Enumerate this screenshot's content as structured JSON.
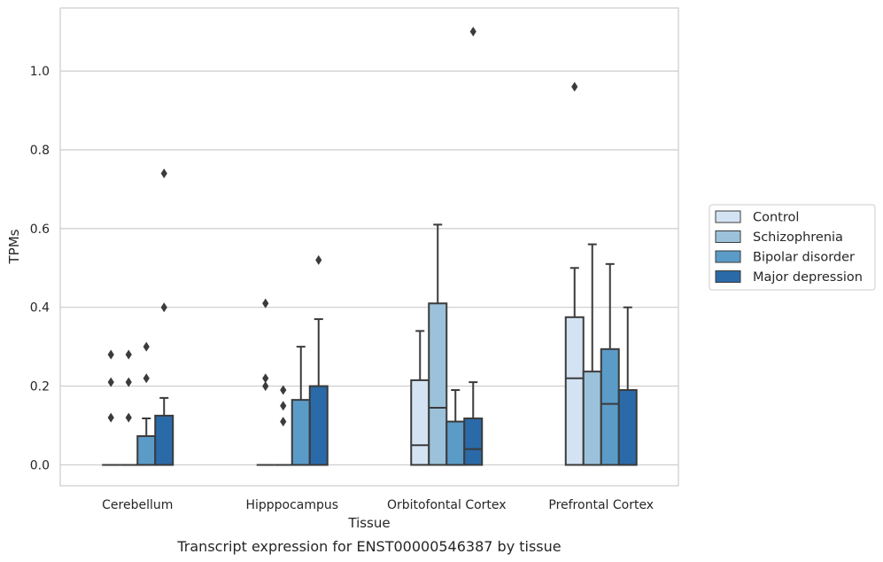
{
  "chart_data": {
    "type": "box",
    "title": "",
    "caption": "Transcript expression for ENST00000546387 by tissue",
    "xlabel": "Tissue",
    "ylabel": "TPMs",
    "ylim": [
      -0.053,
      1.16
    ],
    "yticks": [
      0.0,
      0.2,
      0.4,
      0.6,
      0.8,
      1.0
    ],
    "ytick_labels": [
      "0.0",
      "0.2",
      "0.4",
      "0.6",
      "0.8",
      "1.0"
    ],
    "grid": "horizontal",
    "legend_position": "right",
    "categories": [
      "Cerebellum",
      "Hipppocampus",
      "Orbitofontal Cortex",
      "Prefrontal Cortex"
    ],
    "series": [
      {
        "name": "Control",
        "color": "#d4e3f3",
        "boxes": [
          {
            "q1": 0.0,
            "median": 0.0,
            "q3": 0.0,
            "whisker_low": 0.0,
            "whisker_high": 0.0,
            "outliers": [
              0.12,
              0.21,
              0.28
            ]
          },
          {
            "q1": 0.0,
            "median": 0.0,
            "q3": 0.0,
            "whisker_low": 0.0,
            "whisker_high": 0.0,
            "outliers": [
              0.2,
              0.22,
              0.41
            ]
          },
          {
            "q1": 0.0,
            "median": 0.05,
            "q3": 0.215,
            "whisker_low": 0.0,
            "whisker_high": 0.34,
            "outliers": []
          },
          {
            "q1": 0.0,
            "median": 0.22,
            "q3": 0.375,
            "whisker_low": 0.0,
            "whisker_high": 0.5,
            "outliers": [
              0.96
            ]
          }
        ]
      },
      {
        "name": "Schizophrenia",
        "color": "#9cc2db",
        "boxes": [
          {
            "q1": 0.0,
            "median": 0.0,
            "q3": 0.0,
            "whisker_low": 0.0,
            "whisker_high": 0.0,
            "outliers": [
              0.12,
              0.21,
              0.28
            ]
          },
          {
            "q1": 0.0,
            "median": 0.0,
            "q3": 0.0,
            "whisker_low": 0.0,
            "whisker_high": 0.0,
            "outliers": [
              0.11,
              0.15,
              0.19
            ]
          },
          {
            "q1": 0.0,
            "median": 0.145,
            "q3": 0.41,
            "whisker_low": 0.0,
            "whisker_high": 0.61,
            "outliers": []
          },
          {
            "q1": 0.0,
            "median": 0.0,
            "q3": 0.237,
            "whisker_low": 0.0,
            "whisker_high": 0.56,
            "outliers": []
          }
        ]
      },
      {
        "name": "Bipolar disorder",
        "color": "#5b9bc8",
        "boxes": [
          {
            "q1": 0.0,
            "median": 0.0,
            "q3": 0.073,
            "whisker_low": 0.0,
            "whisker_high": 0.118,
            "outliers": [
              0.22,
              0.3
            ]
          },
          {
            "q1": 0.0,
            "median": 0.0,
            "q3": 0.165,
            "whisker_low": 0.0,
            "whisker_high": 0.3,
            "outliers": []
          },
          {
            "q1": 0.0,
            "median": 0.0,
            "q3": 0.11,
            "whisker_low": 0.0,
            "whisker_high": 0.19,
            "outliers": []
          },
          {
            "q1": 0.0,
            "median": 0.155,
            "q3": 0.294,
            "whisker_low": 0.0,
            "whisker_high": 0.51,
            "outliers": []
          }
        ]
      },
      {
        "name": "Major depression",
        "color": "#2b6aa8",
        "boxes": [
          {
            "q1": 0.0,
            "median": 0.0,
            "q3": 0.125,
            "whisker_low": 0.0,
            "whisker_high": 0.17,
            "outliers": [
              0.4,
              0.74
            ]
          },
          {
            "q1": 0.0,
            "median": 0.0,
            "q3": 0.2,
            "whisker_low": 0.0,
            "whisker_high": 0.37,
            "outliers": [
              0.52
            ]
          },
          {
            "q1": 0.0,
            "median": 0.04,
            "q3": 0.118,
            "whisker_low": 0.0,
            "whisker_high": 0.21,
            "outliers": [
              1.1
            ]
          },
          {
            "q1": 0.0,
            "median": 0.0,
            "q3": 0.19,
            "whisker_low": 0.0,
            "whisker_high": 0.4,
            "outliers": []
          }
        ]
      }
    ]
  }
}
